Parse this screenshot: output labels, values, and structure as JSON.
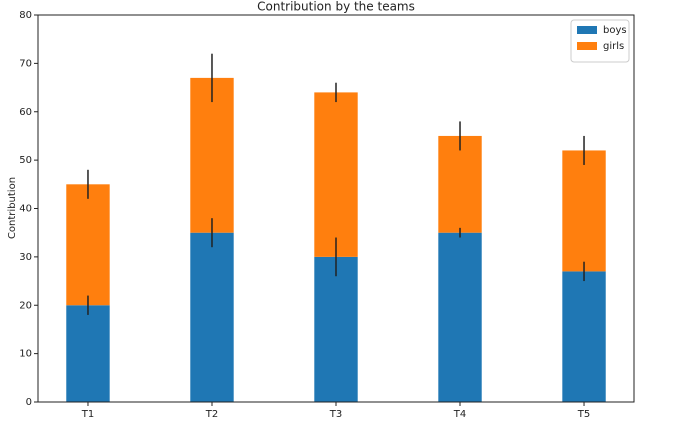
{
  "chart_data": {
    "type": "bar",
    "stacked": true,
    "title": "Contribution by the teams",
    "y_label": "Contribution",
    "categories": [
      "T1",
      "T2",
      "T3",
      "T4",
      "T5"
    ],
    "series": [
      {
        "name": "boys",
        "color": "#1f77b4",
        "values": [
          20,
          35,
          30,
          35,
          27
        ],
        "errors": [
          2,
          3,
          4,
          1,
          2
        ]
      },
      {
        "name": "girls",
        "color": "#ff7f0e",
        "values": [
          25,
          32,
          34,
          20,
          25
        ],
        "errors": [
          3,
          5,
          2,
          3,
          3
        ]
      }
    ],
    "ylim": [
      0,
      80
    ],
    "yticks": [
      0,
      10,
      20,
      30,
      40,
      50,
      60,
      70,
      80
    ],
    "grid": false,
    "legend": "upper right"
  }
}
